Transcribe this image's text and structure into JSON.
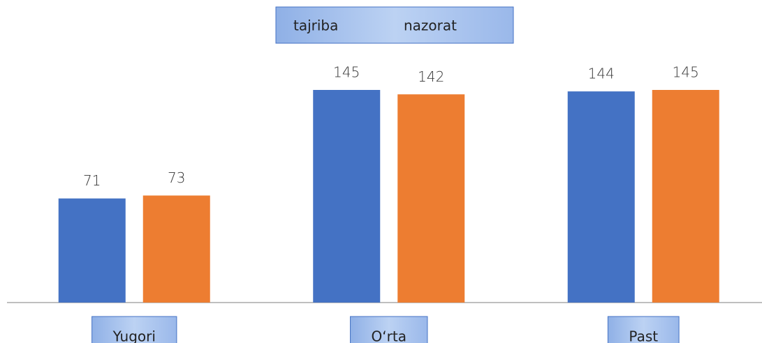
{
  "chart_data": {
    "type": "bar",
    "categories": [
      "Yugori",
      "O‘rta",
      "Past"
    ],
    "series": [
      {
        "name": "tajriba",
        "color": "#4472c4",
        "values": [
          71,
          145,
          144
        ]
      },
      {
        "name": "nazorat",
        "color": "#ed7d31",
        "values": [
          73,
          142,
          145
        ]
      }
    ]
  }
}
